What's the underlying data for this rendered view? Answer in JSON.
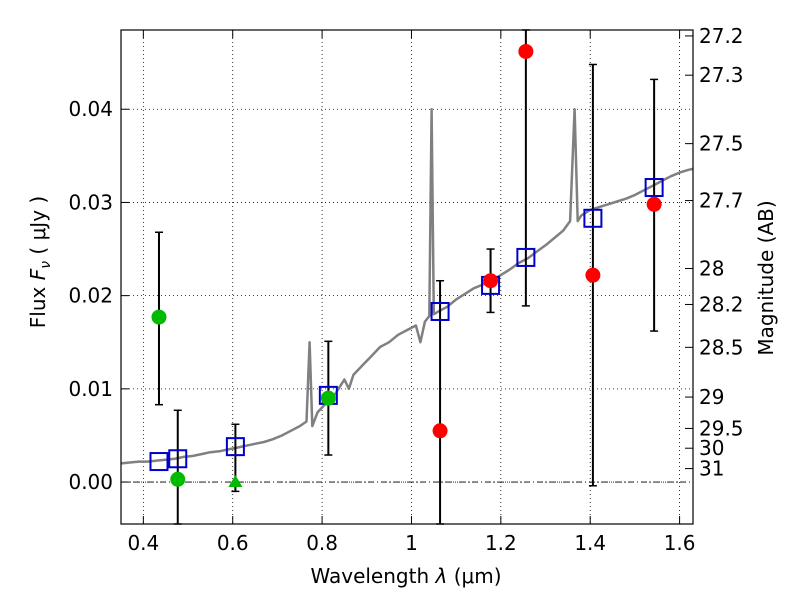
{
  "chart_data": {
    "type": "scatter",
    "xlabel": "Wavelength",
    "xlabel_symbol": "λ",
    "xlabel_unit": "(μm)",
    "ylabel": "Flux",
    "ylabel_symbol": "F",
    "ylabel_subscript": "ν",
    "ylabel_unit": "( μJy )",
    "y2label": "Magnitude (AB)",
    "xlim": [
      0.35,
      1.63
    ],
    "ylim": [
      -0.0045,
      0.0485
    ],
    "grid": true,
    "x_ticks": [
      {
        "value": 0.4,
        "label": "0.4"
      },
      {
        "value": 0.6,
        "label": "0.6"
      },
      {
        "value": 0.8,
        "label": "0.8"
      },
      {
        "value": 1.0,
        "label": "1"
      },
      {
        "value": 1.2,
        "label": "1.2"
      },
      {
        "value": 1.4,
        "label": "1.4"
      },
      {
        "value": 1.6,
        "label": "1.6"
      }
    ],
    "y_ticks": [
      {
        "value": 0.0,
        "label": "0.00"
      },
      {
        "value": 0.01,
        "label": "0.01"
      },
      {
        "value": 0.02,
        "label": "0.02"
      },
      {
        "value": 0.03,
        "label": "0.03"
      },
      {
        "value": 0.04,
        "label": "0.04"
      }
    ],
    "mag_ticks": [
      {
        "mag": 27.2,
        "label": "27.2"
      },
      {
        "mag": 27.3,
        "label": "27.3"
      },
      {
        "mag": 27.5,
        "label": "27.5"
      },
      {
        "mag": 27.7,
        "label": "27.7"
      },
      {
        "mag": 28.0,
        "label": "28"
      },
      {
        "mag": 28.2,
        "label": "28.2"
      },
      {
        "mag": 28.5,
        "label": "28.5"
      },
      {
        "mag": 29.0,
        "label": "29"
      },
      {
        "mag": 29.5,
        "label": "29.5"
      },
      {
        "mag": 30.0,
        "label": "30"
      },
      {
        "mag": 31.0,
        "label": "31"
      }
    ],
    "colors": {
      "template": "#808080",
      "model": "#0000cc",
      "red": "#ff0000",
      "green": "#00bb00",
      "error": "#000000"
    },
    "template_spectrum": [
      [
        0.35,
        0.002
      ],
      [
        0.37,
        0.0021
      ],
      [
        0.39,
        0.0022
      ],
      [
        0.41,
        0.0022
      ],
      [
        0.43,
        0.0023
      ],
      [
        0.45,
        0.0024
      ],
      [
        0.47,
        0.0025
      ],
      [
        0.49,
        0.0027
      ],
      [
        0.51,
        0.0028
      ],
      [
        0.53,
        0.003
      ],
      [
        0.55,
        0.0032
      ],
      [
        0.57,
        0.0033
      ],
      [
        0.59,
        0.0035
      ],
      [
        0.61,
        0.0037
      ],
      [
        0.63,
        0.0039
      ],
      [
        0.65,
        0.0041
      ],
      [
        0.67,
        0.0043
      ],
      [
        0.69,
        0.0046
      ],
      [
        0.71,
        0.005
      ],
      [
        0.73,
        0.0055
      ],
      [
        0.75,
        0.006
      ],
      [
        0.765,
        0.0065
      ],
      [
        0.772,
        0.015
      ],
      [
        0.778,
        0.006
      ],
      [
        0.79,
        0.0075
      ],
      [
        0.81,
        0.0085
      ],
      [
        0.83,
        0.0095
      ],
      [
        0.85,
        0.011
      ],
      [
        0.86,
        0.01
      ],
      [
        0.87,
        0.0115
      ],
      [
        0.89,
        0.0125
      ],
      [
        0.91,
        0.0135
      ],
      [
        0.93,
        0.0145
      ],
      [
        0.95,
        0.015
      ],
      [
        0.97,
        0.0158
      ],
      [
        0.99,
        0.0163
      ],
      [
        1.01,
        0.0168
      ],
      [
        1.02,
        0.015
      ],
      [
        1.03,
        0.0172
      ],
      [
        1.04,
        0.0178
      ],
      [
        1.045,
        0.04
      ],
      [
        1.05,
        0.018
      ],
      [
        1.06,
        0.0183
      ],
      [
        1.08,
        0.0188
      ],
      [
        1.1,
        0.0196
      ],
      [
        1.12,
        0.0202
      ],
      [
        1.14,
        0.0208
      ],
      [
        1.16,
        0.0212
      ],
      [
        1.18,
        0.0216
      ],
      [
        1.2,
        0.0222
      ],
      [
        1.22,
        0.0228
      ],
      [
        1.24,
        0.0235
      ],
      [
        1.26,
        0.024
      ],
      [
        1.28,
        0.0247
      ],
      [
        1.3,
        0.0254
      ],
      [
        1.32,
        0.0262
      ],
      [
        1.34,
        0.027
      ],
      [
        1.355,
        0.028
      ],
      [
        1.365,
        0.04
      ],
      [
        1.372,
        0.028
      ],
      [
        1.38,
        0.0286
      ],
      [
        1.4,
        0.0292
      ],
      [
        1.42,
        0.0295
      ],
      [
        1.44,
        0.0298
      ],
      [
        1.46,
        0.0301
      ],
      [
        1.48,
        0.0304
      ],
      [
        1.5,
        0.0308
      ],
      [
        1.52,
        0.0313
      ],
      [
        1.54,
        0.0318
      ],
      [
        1.56,
        0.0323
      ],
      [
        1.58,
        0.0328
      ],
      [
        1.6,
        0.0332
      ],
      [
        1.62,
        0.0335
      ],
      [
        1.63,
        0.0336
      ]
    ],
    "model_points": [
      {
        "x": 0.435,
        "y": 0.0022
      },
      {
        "x": 0.477,
        "y": 0.0025
      },
      {
        "x": 0.606,
        "y": 0.0038
      },
      {
        "x": 0.814,
        "y": 0.0093
      },
      {
        "x": 1.064,
        "y": 0.0183
      },
      {
        "x": 1.177,
        "y": 0.0211
      },
      {
        "x": 1.256,
        "y": 0.0241
      },
      {
        "x": 1.406,
        "y": 0.0283
      },
      {
        "x": 1.543,
        "y": 0.0316
      }
    ],
    "observed_points": [
      {
        "x": 0.435,
        "y": 0.0177,
        "err_lo": 0.0083,
        "err_hi": 0.0268,
        "color": "green",
        "marker": "circle"
      },
      {
        "x": 0.477,
        "y": 0.0003,
        "err_lo": -0.0045,
        "err_hi": 0.0077,
        "color": "green",
        "marker": "circle"
      },
      {
        "x": 0.606,
        "y": 0.0,
        "err_lo": -0.001,
        "err_hi": 0.0062,
        "color": "green",
        "marker": "triangle"
      },
      {
        "x": 0.814,
        "y": 0.009,
        "err_lo": 0.0029,
        "err_hi": 0.0151,
        "color": "green",
        "marker": "circle"
      },
      {
        "x": 1.064,
        "y": 0.0055,
        "err_lo": -0.0045,
        "err_hi": 0.0216,
        "color": "red",
        "marker": "circle"
      },
      {
        "x": 1.177,
        "y": 0.0216,
        "err_lo": 0.0182,
        "err_hi": 0.025,
        "color": "red",
        "marker": "circle"
      },
      {
        "x": 1.256,
        "y": 0.0462,
        "err_lo": 0.0189,
        "err_hi": 0.0485,
        "color": "red",
        "marker": "circle"
      },
      {
        "x": 1.406,
        "y": 0.0222,
        "err_lo": -0.0004,
        "err_hi": 0.0448,
        "color": "red",
        "marker": "circle"
      },
      {
        "x": 1.543,
        "y": 0.0298,
        "err_lo": 0.0162,
        "err_hi": 0.0432,
        "color": "red",
        "marker": "circle"
      }
    ]
  }
}
